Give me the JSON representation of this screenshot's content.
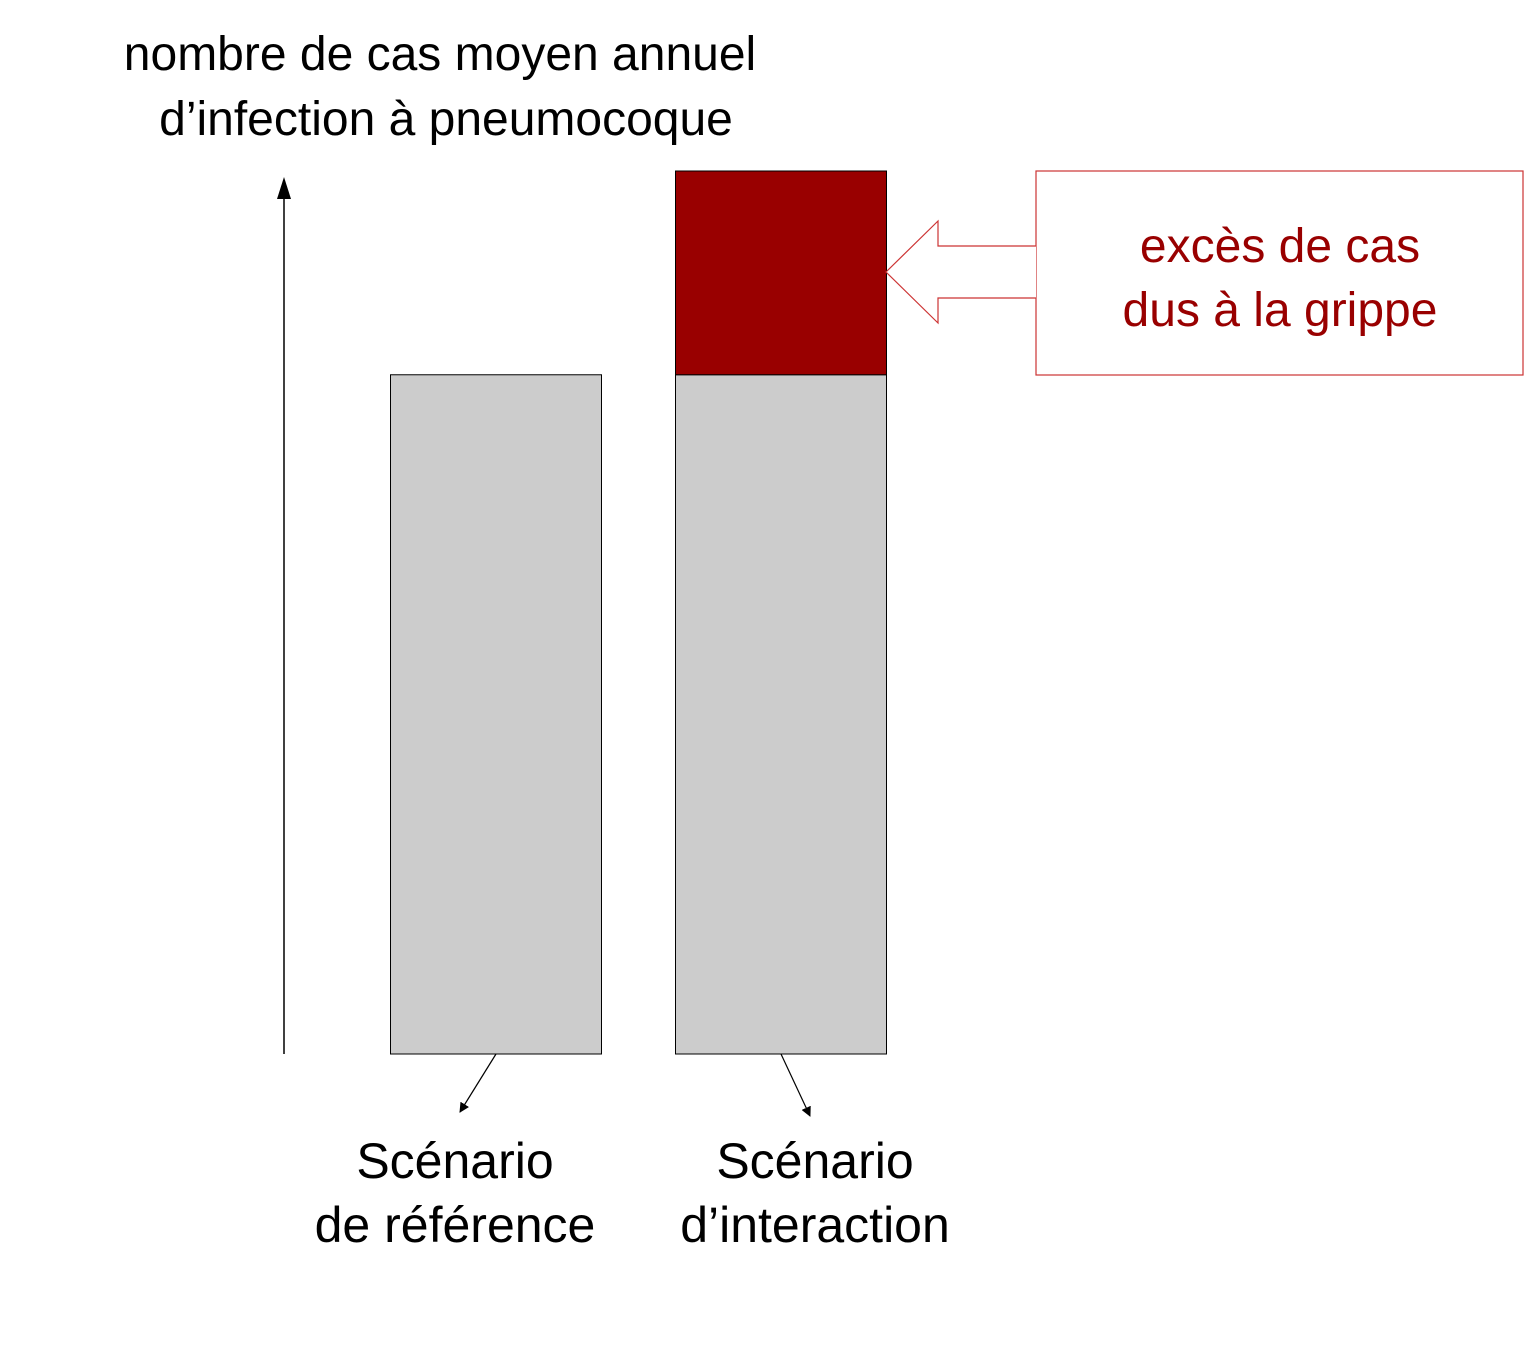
{
  "chart_data": {
    "type": "bar",
    "stacked": true,
    "ylabel_lines": [
      "nombre de cas moyen annuel",
      "d’infection à pneumocoque"
    ],
    "categories": [
      [
        "Scénario",
        "de référence"
      ],
      [
        "Scénario",
        "d’interaction"
      ]
    ],
    "series": [
      {
        "values": [
          100,
          100
        ],
        "color": "#cccccc"
      },
      {
        "values": [
          0,
          30
        ],
        "color": "#990000"
      }
    ],
    "annotation": {
      "lines": [
        "excès de cas",
        "dus à la grippe"
      ],
      "color": "#990000",
      "target_category": 1
    },
    "ylim": [
      0,
      130
    ],
    "grid": false
  }
}
